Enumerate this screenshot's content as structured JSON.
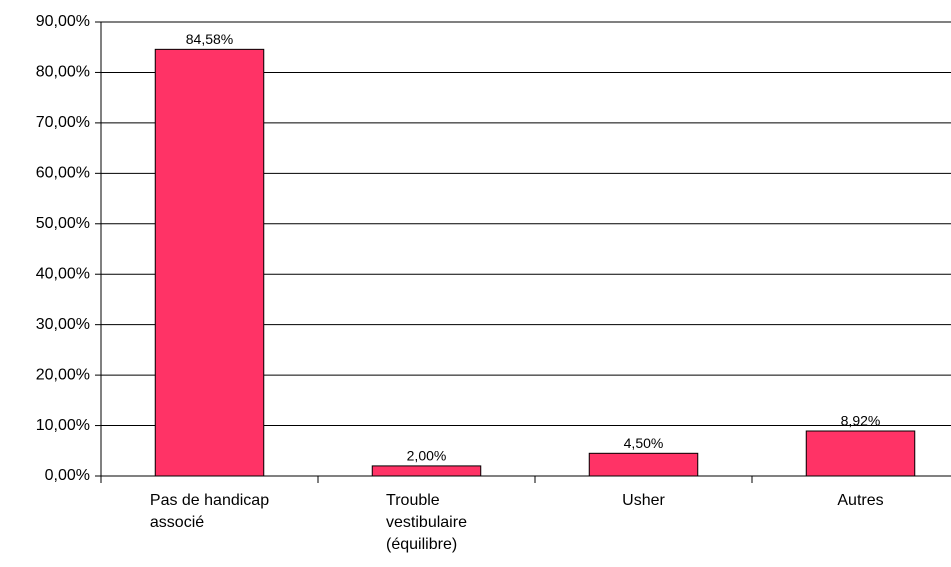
{
  "chart_data": {
    "type": "bar",
    "categories": [
      "Pas de handicap\nassocié",
      "Trouble\nvestibulaire\n(équilibre)",
      "Usher",
      "Autres"
    ],
    "values": [
      84.58,
      2.0,
      4.5,
      8.92
    ],
    "value_labels": [
      "84,58%",
      "2,00%",
      "4,50%",
      "8,92%"
    ],
    "color": "#ff3366",
    "ylim": [
      0,
      90
    ],
    "yticks": [
      {
        "value": 0,
        "label": "0,00%"
      },
      {
        "value": 10,
        "label": "10,00%"
      },
      {
        "value": 20,
        "label": "20,00%"
      },
      {
        "value": 30,
        "label": "30,00%"
      },
      {
        "value": 40,
        "label": "40,00%"
      },
      {
        "value": 50,
        "label": "50,00%"
      },
      {
        "value": 60,
        "label": "60,00%"
      },
      {
        "value": 70,
        "label": "70,00%"
      },
      {
        "value": 80,
        "label": "80,00%"
      },
      {
        "value": 90,
        "label": "90,00%"
      }
    ],
    "grid": true
  }
}
